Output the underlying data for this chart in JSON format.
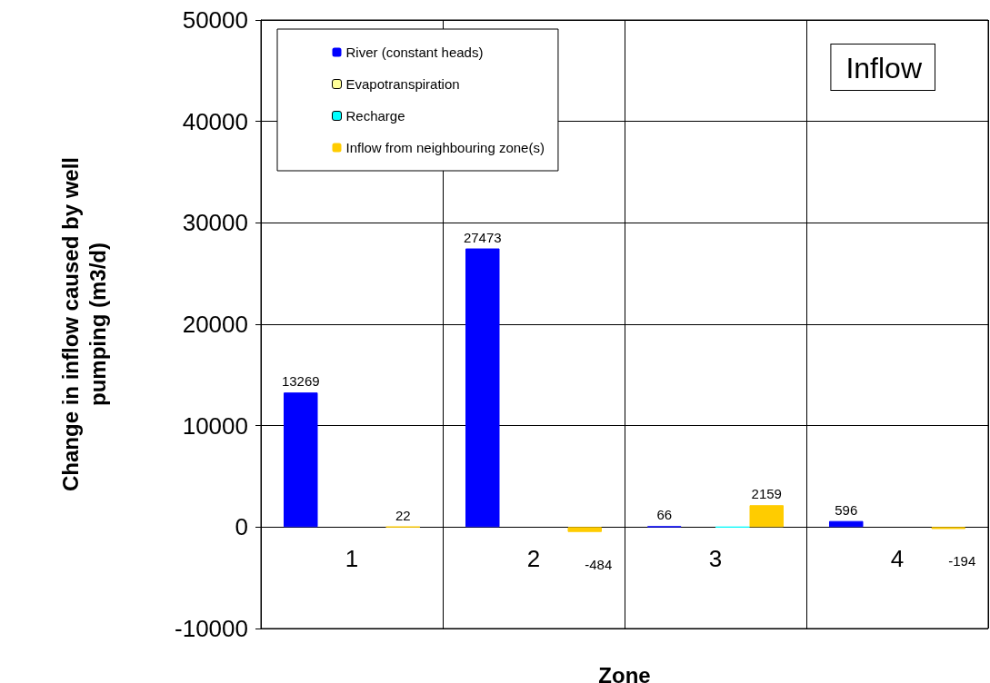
{
  "chart_data": {
    "type": "bar",
    "xlabel": "Zone",
    "ylabel": "Change in inflow caused by well pumping (m3/d)",
    "categories": [
      "1",
      "2",
      "3",
      "4"
    ],
    "series": [
      {
        "name": "River (constant heads)",
        "color": "#0000ff",
        "values": [
          13269,
          27473,
          66,
          596
        ],
        "value_labels": [
          "13269",
          "27473",
          "66",
          "596"
        ]
      },
      {
        "name": "Evapotranspiration",
        "color": "#ffff99",
        "values": [
          null,
          null,
          null,
          null
        ]
      },
      {
        "name": "Recharge",
        "color": "#00ffff",
        "values": [
          null,
          null,
          0,
          null
        ]
      },
      {
        "name": "Inflow from neighbouring zone(s)",
        "color": "#ffcc00",
        "values": [
          22,
          -484,
          2159,
          -194
        ],
        "value_labels": [
          "22",
          "-484",
          "2159",
          "-194"
        ]
      }
    ],
    "ylim": [
      -10000,
      50000
    ],
    "yticks": [
      -10000,
      0,
      10000,
      20000,
      30000,
      40000,
      50000
    ],
    "grid": true,
    "legend": "top left",
    "annotations": [
      "Inflow"
    ]
  }
}
